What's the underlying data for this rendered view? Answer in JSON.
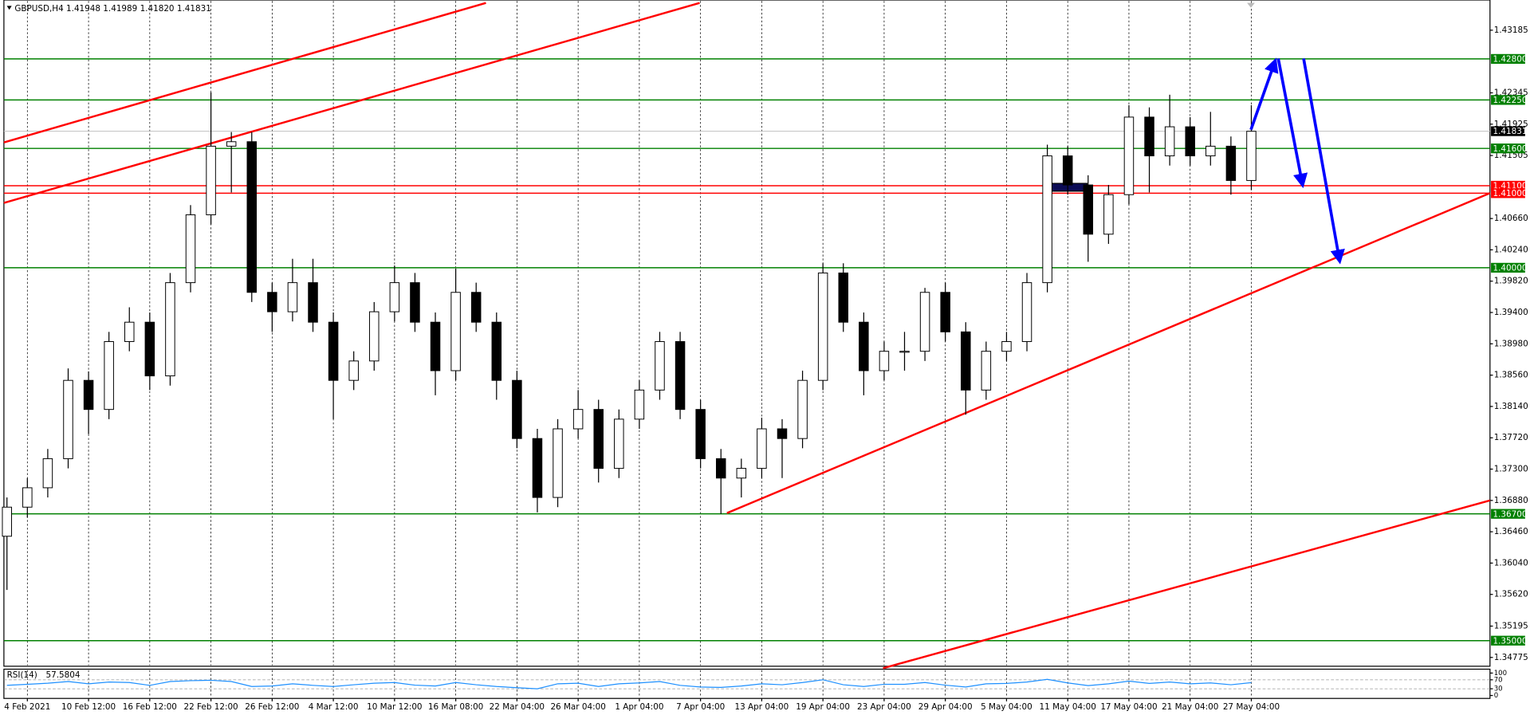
{
  "chart_data": {
    "type": "candlestick",
    "title": "GBPUSD,H4  1.41948 1.41989 1.41820 1.41831",
    "ohlc": [
      [
        1.364,
        1.3692,
        1.3568,
        1.3679
      ],
      [
        1.3679,
        1.3718,
        1.3665,
        1.3705
      ],
      [
        1.3705,
        1.3757,
        1.3692,
        1.3744
      ],
      [
        1.3744,
        1.3865,
        1.3731,
        1.3849
      ],
      [
        1.3849,
        1.3861,
        1.3777,
        1.381
      ],
      [
        1.381,
        1.3914,
        1.3797,
        1.3901
      ],
      [
        1.3901,
        1.3947,
        1.3888,
        1.3927
      ],
      [
        1.3927,
        1.394,
        1.3836,
        1.3855
      ],
      [
        1.3855,
        1.3993,
        1.3842,
        1.398
      ],
      [
        1.398,
        1.4084,
        1.3967,
        1.4071
      ],
      [
        1.4071,
        1.4235,
        1.4058,
        1.4163
      ],
      [
        1.4163,
        1.4182,
        1.4101,
        1.4169
      ],
      [
        1.4169,
        1.4182,
        1.3954,
        1.3967
      ],
      [
        1.3967,
        1.398,
        1.3914,
        1.3941
      ],
      [
        1.3941,
        1.4012,
        1.3928,
        1.398
      ],
      [
        1.398,
        1.4012,
        1.3914,
        1.3927
      ],
      [
        1.3927,
        1.394,
        1.3797,
        1.3849
      ],
      [
        1.3849,
        1.3888,
        1.3836,
        1.3875
      ],
      [
        1.3875,
        1.3954,
        1.3862,
        1.3941
      ],
      [
        1.3941,
        1.4003,
        1.3928,
        1.398
      ],
      [
        1.398,
        1.3993,
        1.3914,
        1.3927
      ],
      [
        1.3927,
        1.394,
        1.3829,
        1.3862
      ],
      [
        1.3862,
        1.3999,
        1.3849,
        1.3967
      ],
      [
        1.3967,
        1.398,
        1.3914,
        1.3927
      ],
      [
        1.3927,
        1.394,
        1.3823,
        1.3849
      ],
      [
        1.3849,
        1.3862,
        1.3758,
        1.3771
      ],
      [
        1.3771,
        1.3784,
        1.3672,
        1.3692
      ],
      [
        1.3692,
        1.3797,
        1.3679,
        1.3784
      ],
      [
        1.3784,
        1.3836,
        1.3771,
        1.381
      ],
      [
        1.381,
        1.3823,
        1.3712,
        1.3731
      ],
      [
        1.3731,
        1.381,
        1.3718,
        1.3797
      ],
      [
        1.3797,
        1.3849,
        1.3784,
        1.3836
      ],
      [
        1.3836,
        1.3914,
        1.3823,
        1.3901
      ],
      [
        1.3901,
        1.3914,
        1.3797,
        1.381
      ],
      [
        1.381,
        1.3823,
        1.3731,
        1.3744
      ],
      [
        1.3744,
        1.3757,
        1.367,
        1.3718
      ],
      [
        1.3718,
        1.3744,
        1.3692,
        1.3731
      ],
      [
        1.3731,
        1.3799,
        1.3718,
        1.3784
      ],
      [
        1.3784,
        1.3797,
        1.3718,
        1.3771
      ],
      [
        1.3771,
        1.3862,
        1.3758,
        1.3849
      ],
      [
        1.3849,
        1.4006,
        1.3836,
        1.3993
      ],
      [
        1.3993,
        1.4006,
        1.3914,
        1.3927
      ],
      [
        1.3927,
        1.394,
        1.3829,
        1.3862
      ],
      [
        1.3862,
        1.3901,
        1.3849,
        1.3888
      ],
      [
        1.3888,
        1.3914,
        1.3862,
        1.3888
      ],
      [
        1.3888,
        1.3973,
        1.3875,
        1.3967
      ],
      [
        1.3967,
        1.398,
        1.3901,
        1.3914
      ],
      [
        1.3914,
        1.3927,
        1.3803,
        1.3836
      ],
      [
        1.3836,
        1.3901,
        1.3823,
        1.3888
      ],
      [
        1.3888,
        1.3914,
        1.3875,
        1.3901
      ],
      [
        1.3901,
        1.3993,
        1.3888,
        1.398
      ],
      [
        1.398,
        1.4165,
        1.3967,
        1.415
      ],
      [
        1.415,
        1.4163,
        1.4098,
        1.4111
      ],
      [
        1.4111,
        1.4124,
        1.4008,
        1.4045
      ],
      [
        1.4045,
        1.4111,
        1.4032,
        1.4098
      ],
      [
        1.4098,
        1.4218,
        1.4085,
        1.4202
      ],
      [
        1.4202,
        1.4215,
        1.4101,
        1.415
      ],
      [
        1.415,
        1.4232,
        1.4137,
        1.4189
      ],
      [
        1.4189,
        1.4202,
        1.4137,
        1.415
      ],
      [
        1.415,
        1.4209,
        1.4137,
        1.4163
      ],
      [
        1.4163,
        1.4176,
        1.4098,
        1.4117
      ],
      [
        1.4117,
        1.4218,
        1.4104,
        1.4183
      ]
    ],
    "bull_color": "#ffffff",
    "bear_color": "#000000",
    "wick_color": "#000000",
    "xlim": [
      -0.15,
      72.7
    ],
    "xticks": [
      {
        "value": 1,
        "label": "4 Feb 2021"
      },
      {
        "value": 4,
        "label": "10 Feb 12:00"
      },
      {
        "value": 7,
        "label": "16 Feb 12:00"
      },
      {
        "value": 10,
        "label": "22 Feb 12:00"
      },
      {
        "value": 13,
        "label": "26 Feb 12:00"
      },
      {
        "value": 16,
        "label": "4 Mar 12:00"
      },
      {
        "value": 19,
        "label": "10 Mar 12:00"
      },
      {
        "value": 22,
        "label": "16 Mar 08:00"
      },
      {
        "value": 25,
        "label": "22 Mar 04:00"
      },
      {
        "value": 28,
        "label": "26 Mar 04:00"
      },
      {
        "value": 31,
        "label": "1 Apr 04:00"
      },
      {
        "value": 34,
        "label": "7 Apr 04:00"
      },
      {
        "value": 37,
        "label": "13 Apr 04:00"
      },
      {
        "value": 40,
        "label": "19 Apr 04:00"
      },
      {
        "value": 43,
        "label": "23 Apr 04:00"
      },
      {
        "value": 46,
        "label": "29 Apr 04:00"
      },
      {
        "value": 49,
        "label": "5 May 04:00"
      },
      {
        "value": 52,
        "label": "11 May 04:00"
      },
      {
        "value": 55,
        "label": "17 May 04:00"
      },
      {
        "value": 58,
        "label": "21 May 04:00"
      },
      {
        "value": 61,
        "label": "27 May 04:00"
      }
    ],
    "ylim": [
      1.34657,
      1.4359
    ],
    "yticks": [
      1.43185,
      1.42345,
      1.41925,
      1.41505,
      {
        "value": 1.4066,
        "label": "1.40660"
      },
      {
        "value": 1.4024,
        "label": "1.40240"
      },
      {
        "value": 1.3982,
        "label": "1.39820"
      },
      {
        "value": 1.394,
        "label": "1.39400"
      },
      {
        "value": 1.3898,
        "label": "1.38980"
      },
      {
        "value": 1.3856,
        "label": "1.38560"
      },
      {
        "value": 1.3814,
        "label": "1.38140"
      },
      {
        "value": 1.3772,
        "label": "1.37720"
      },
      {
        "value": 1.373,
        "label": "1.37300"
      },
      {
        "value": 1.3688,
        "label": "1.36880"
      },
      {
        "value": 1.3646,
        "label": "1.36460"
      },
      {
        "value": 1.3604,
        "label": "1.36040"
      },
      {
        "value": 1.3562,
        "label": "1.35620"
      },
      1.35195,
      1.34775
    ],
    "levels": [
      {
        "value": 1.428,
        "label": "1.42800",
        "color": "#008000"
      },
      {
        "value": 1.4225,
        "label": "1.42250",
        "color": "#008000"
      },
      {
        "value": 1.416,
        "label": "1.41600",
        "color": "#008000"
      },
      {
        "value": 1.411,
        "label": "1.41100",
        "color": "#ff0000"
      },
      {
        "value": 1.41,
        "label": "1.41000",
        "color": "#ff0000"
      },
      {
        "value": 1.4,
        "label": "1.40000",
        "color": "#008000"
      },
      {
        "value": 1.367,
        "label": "1.36700",
        "color": "#008000"
      },
      {
        "value": 1.35,
        "label": "1.35000",
        "color": "#008000"
      }
    ],
    "current_price": {
      "value": 1.41831,
      "label": "1.41831",
      "color": "#000000"
    },
    "rsi": {
      "name": "RSI(14)",
      "color": "#1e90ff",
      "values": [
        45,
        50,
        55,
        62,
        52,
        60,
        58,
        45,
        62,
        66,
        68,
        62,
        40,
        42,
        52,
        45,
        40,
        48,
        55,
        58,
        46,
        42,
        58,
        48,
        40,
        35,
        30,
        52,
        55,
        40,
        52,
        56,
        62,
        45,
        38,
        36,
        42,
        52,
        48,
        58,
        70,
        48,
        40,
        50,
        50,
        58,
        46,
        38,
        52,
        54,
        60,
        72,
        56,
        44,
        52,
        64,
        54,
        60,
        52,
        56,
        48,
        57.5804
      ],
      "ylim": [
        0,
        100
      ],
      "yticks": [
        100,
        70,
        30,
        0
      ]
    }
  }
}
